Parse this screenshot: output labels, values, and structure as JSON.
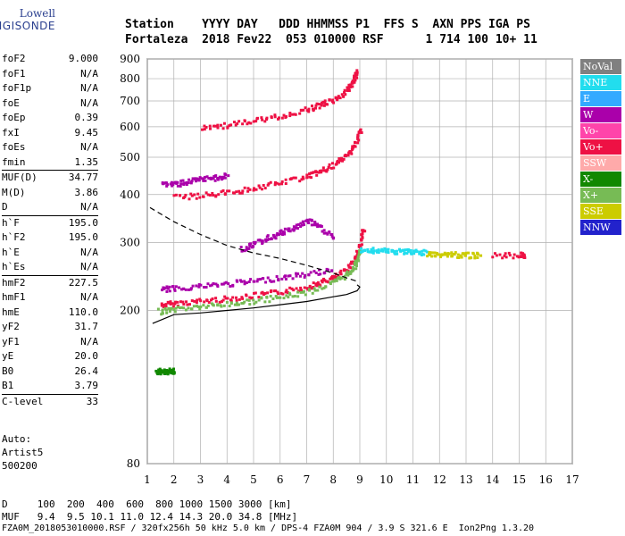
{
  "logo": {
    "line1": "Lowell",
    "line2": "DIGISONDE"
  },
  "header": {
    "line1": "Station    YYYY DAY   DDD HHMMSS P1  FFS S  AXN PPS IGA PS",
    "line2": "Fortaleza  2018 Fev22  053 010000 RSF      1 714 100 10+ 11"
  },
  "params": [
    {
      "group": [
        {
          "label": "foF2",
          "value": "9.000"
        },
        {
          "label": "foF1",
          "value": "N/A"
        },
        {
          "label": "foF1p",
          "value": "N/A"
        },
        {
          "label": "foE",
          "value": "N/A"
        },
        {
          "label": "foEp",
          "value": "0.39"
        },
        {
          "label": "fxI",
          "value": "9.45"
        },
        {
          "label": "foEs",
          "value": "N/A"
        },
        {
          "label": "fmin",
          "value": "1.35"
        }
      ]
    },
    {
      "group": [
        {
          "label": "MUF(D)",
          "value": "34.77"
        },
        {
          "label": "M(D)",
          "value": "3.86"
        },
        {
          "label": "D",
          "value": "N/A"
        }
      ]
    },
    {
      "group": [
        {
          "label": "h`F",
          "value": "195.0"
        },
        {
          "label": "h`F2",
          "value": "195.0"
        },
        {
          "label": "h`E",
          "value": "N/A"
        },
        {
          "label": "h`Es",
          "value": "N/A"
        }
      ]
    },
    {
      "group": [
        {
          "label": "hmF2",
          "value": "227.5"
        },
        {
          "label": "hmF1",
          "value": "N/A"
        },
        {
          "label": "hmE",
          "value": "110.0"
        },
        {
          "label": "yF2",
          "value": "31.7"
        },
        {
          "label": "yF1",
          "value": "N/A"
        },
        {
          "label": "yE",
          "value": "20.0"
        },
        {
          "label": "B0",
          "value": "26.4"
        },
        {
          "label": "B1",
          "value": "3.79"
        }
      ]
    },
    {
      "group": [
        {
          "label": "C-level",
          "value": "33"
        }
      ]
    }
  ],
  "auto": {
    "line1": "Auto:",
    "line2": "Artist5",
    "line3": "500200"
  },
  "bottom": {
    "line1": "D     100  200  400  600  800 1000 1500 3000 [km]",
    "line2": "MUF   9.4  9.5 10.1 11.0 12.4 14.3 20.0 34.8 [MHz]",
    "line3": "FZA0M_2018053010000.RSF / 320fx256h 50 kHz 5.0 km / DPS-4 FZA0M 904 / 3.9 S 321.6 E  Ion2Png 1.3.20"
  },
  "legend": [
    {
      "label": "NoVal",
      "color": "#808080"
    },
    {
      "label": "NNE",
      "color": "#22ddee"
    },
    {
      "label": "E",
      "color": "#33aaff"
    },
    {
      "label": "W",
      "color": "#aa00aa"
    },
    {
      "label": "Vo-",
      "color": "#ff44aa"
    },
    {
      "label": "Vo+",
      "color": "#ee1144"
    },
    {
      "label": "SSW",
      "color": "#ffaaaa"
    },
    {
      "label": "X-",
      "color": "#118800"
    },
    {
      "label": "X+",
      "color": "#77bb55"
    },
    {
      "label": "SSE",
      "color": "#cccc00"
    },
    {
      "label": "NNW",
      "color": "#2222cc"
    }
  ],
  "chart_data": {
    "type": "scatter",
    "xlim": [
      1,
      17
    ],
    "ylim": [
      80,
      900
    ],
    "y_scale": "log",
    "grid": true,
    "x_ticks": [
      "1",
      "2",
      "3",
      "4",
      "5",
      "6",
      "7",
      "8",
      "9",
      "10",
      "11",
      "12",
      "13",
      "14",
      "15",
      "16",
      "17"
    ],
    "y_ticks": [
      {
        "value": 80,
        "label": "80"
      },
      {
        "value": 200,
        "label": "200"
      },
      {
        "value": 300,
        "label": "300"
      },
      {
        "value": 400,
        "label": "400"
      },
      {
        "value": 500,
        "label": "500"
      },
      {
        "value": 600,
        "label": "600"
      },
      {
        "value": 700,
        "label": "700"
      },
      {
        "value": 800,
        "label": "800"
      },
      {
        "value": 900,
        "label": "900"
      }
    ],
    "traces": [
      {
        "name": "O-trace first hop",
        "color": "#ee1144",
        "points": [
          [
            1.5,
            208
          ],
          [
            2,
            210
          ],
          [
            3,
            213
          ],
          [
            4,
            216
          ],
          [
            5,
            220
          ],
          [
            6,
            225
          ],
          [
            7,
            232
          ],
          [
            7.5,
            238
          ],
          [
            8,
            245
          ],
          [
            8.5,
            258
          ],
          [
            8.8,
            275
          ],
          [
            9,
            300
          ],
          [
            9.1,
            330
          ]
        ]
      },
      {
        "name": "X-trace first hop",
        "color": "#77bb55",
        "points": [
          [
            1.4,
            200
          ],
          [
            2,
            203
          ],
          [
            3,
            206
          ],
          [
            4,
            209
          ],
          [
            5,
            213
          ],
          [
            6,
            218
          ],
          [
            7,
            225
          ],
          [
            8,
            238
          ],
          [
            8.5,
            250
          ],
          [
            8.8,
            265
          ],
          [
            9,
            290
          ]
        ]
      },
      {
        "name": "Oblique W",
        "color": "#aa00aa",
        "points": [
          [
            1.5,
            228
          ],
          [
            2,
            230
          ],
          [
            3,
            233
          ],
          [
            4,
            236
          ],
          [
            5,
            240
          ],
          [
            6,
            245
          ],
          [
            7,
            250
          ],
          [
            8,
            258
          ]
        ]
      },
      {
        "name": "Spread echoes",
        "color": "#aa00aa",
        "points": [
          [
            4.5,
            290
          ],
          [
            5,
            300
          ],
          [
            5.5,
            310
          ],
          [
            6,
            320
          ],
          [
            6.5,
            330
          ],
          [
            7,
            345
          ],
          [
            7.5,
            330
          ],
          [
            8,
            310
          ]
        ]
      },
      {
        "name": "Second hop",
        "color": "#ee1144",
        "points": [
          [
            2,
            396
          ],
          [
            3,
            400
          ],
          [
            4,
            408
          ],
          [
            5,
            418
          ],
          [
            6,
            432
          ],
          [
            7,
            450
          ],
          [
            7.5,
            462
          ],
          [
            8,
            480
          ],
          [
            8.5,
            510
          ],
          [
            8.8,
            545
          ],
          [
            9,
            600
          ]
        ]
      },
      {
        "name": "Second hop spread",
        "color": "#aa00aa",
        "points": [
          [
            1.5,
            430
          ],
          [
            2,
            428
          ],
          [
            2.5,
            435
          ],
          [
            3,
            440
          ],
          [
            3.5,
            445
          ],
          [
            4,
            450
          ]
        ]
      },
      {
        "name": "Third hop",
        "color": "#ee1144",
        "points": [
          [
            3,
            600
          ],
          [
            4,
            610
          ],
          [
            5,
            625
          ],
          [
            6,
            645
          ],
          [
            7,
            670
          ],
          [
            7.5,
            690
          ],
          [
            8,
            710
          ],
          [
            8.5,
            750
          ],
          [
            8.7,
            790
          ],
          [
            8.9,
            840
          ]
        ]
      },
      {
        "name": "Oblique NNE",
        "color": "#22ddee",
        "points": [
          [
            9,
            290
          ],
          [
            9.5,
            288
          ],
          [
            10,
            287
          ],
          [
            10.5,
            286
          ],
          [
            11,
            285
          ],
          [
            11.5,
            284
          ]
        ]
      },
      {
        "name": "Oblique SSE",
        "color": "#cccc00",
        "points": [
          [
            11.5,
            282
          ],
          [
            12,
            282
          ],
          [
            12.5,
            281
          ],
          [
            13,
            280
          ],
          [
            13.5,
            280
          ]
        ]
      },
      {
        "name": "Far echoes",
        "color": "#ee1144",
        "points": [
          [
            14,
            280
          ],
          [
            15,
            280
          ],
          [
            15.2,
            280
          ]
        ]
      },
      {
        "name": "Low echoes",
        "color": "#118800",
        "points": [
          [
            1.3,
            140
          ],
          [
            1.5,
            140
          ],
          [
            1.8,
            140
          ],
          [
            2,
            140
          ]
        ]
      }
    ],
    "profile_solid": [
      [
        1.2,
        185
      ],
      [
        2,
        195
      ],
      [
        3,
        197
      ],
      [
        4,
        200
      ],
      [
        5,
        203
      ],
      [
        6,
        207
      ],
      [
        7,
        211
      ],
      [
        8,
        217
      ],
      [
        8.5,
        220
      ],
      [
        8.9,
        225
      ],
      [
        9,
        230
      ],
      [
        8.9,
        233
      ]
    ],
    "profile_dashed": [
      [
        1.1,
        370
      ],
      [
        2,
        340
      ],
      [
        3,
        315
      ],
      [
        4,
        295
      ],
      [
        5,
        282
      ],
      [
        6,
        273
      ],
      [
        7,
        262
      ],
      [
        8,
        250
      ],
      [
        8.5,
        243
      ],
      [
        8.9,
        238
      ]
    ]
  }
}
